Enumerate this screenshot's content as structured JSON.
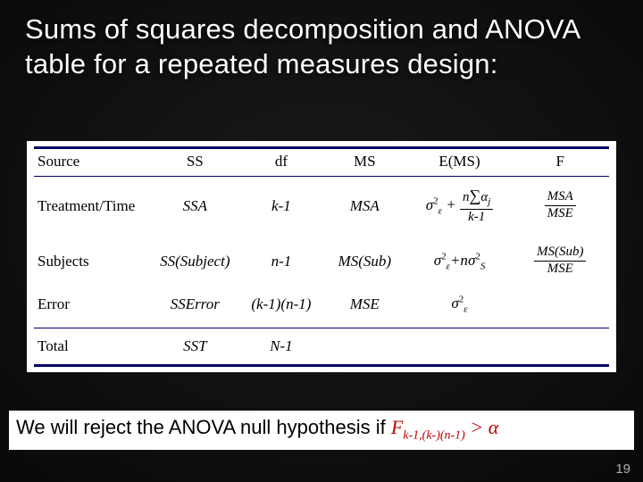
{
  "title": "Sums of squares decomposition and ANOVA table for a repeated measures design:",
  "table": {
    "headers": [
      "Source",
      "SS",
      "df",
      "MS",
      "E(MS)",
      "F"
    ],
    "rows": {
      "treatment": {
        "source": "Treatment/Time",
        "ss": "SSA",
        "df": "k-1",
        "ms": "MSA",
        "ems_sigma": "σ",
        "ems_sigma_sub": "ε",
        "ems_plus": " + ",
        "ems_frac_num_n": "n",
        "ems_frac_num_sum": "∑",
        "ems_frac_num_alpha": "α",
        "ems_frac_num_j": "j",
        "ems_frac_den": "k-1",
        "f_num": "MSA",
        "f_den": "MSE"
      },
      "subjects": {
        "source": "Subjects",
        "ss": "SS(Subject)",
        "df": "n-1",
        "ms": "MS(Sub)",
        "ems_sigma": "σ",
        "ems_sigma_sub": "ε",
        "ems_plus_n": "+n",
        "ems_sigmaS": "σ",
        "ems_sigmaS_sub": "S",
        "f_num": "MS(Sub)",
        "f_den": "MSE"
      },
      "error": {
        "source": "Error",
        "ss": "SSError",
        "df": "(k-1)(n-1)",
        "ms": "MSE",
        "ems_sigma": "σ",
        "ems_sigma_sub": "ε",
        "f": ""
      },
      "total": {
        "source": "Total",
        "ss": "SST",
        "df": "N-1",
        "ms": "",
        "ems": "",
        "f": ""
      }
    }
  },
  "caption": {
    "prefix": "We will reject the ANOVA null hypothesis if ",
    "F": "F",
    "sub": "k-1,(k-)(n-1)",
    "gt": " > ",
    "alpha": "α"
  },
  "page": "19",
  "colors": {
    "rule": "#000066",
    "accent": "#c00000",
    "bg_panel": "#ffffff"
  }
}
